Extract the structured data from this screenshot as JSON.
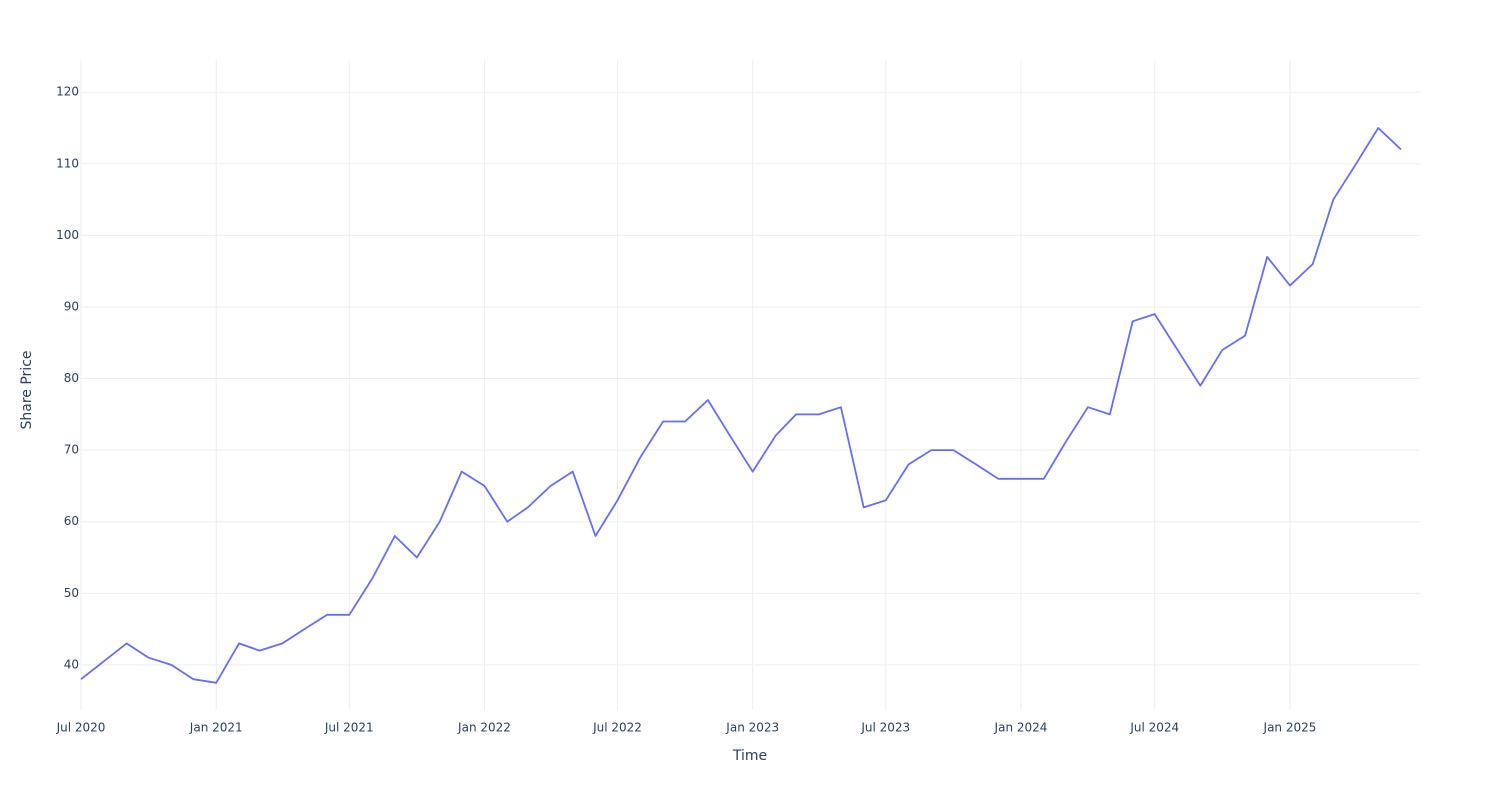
{
  "chart_data": {
    "type": "line",
    "x_label": "Time",
    "y_label": "Share Price",
    "x": [
      "2020-07",
      "2020-08",
      "2020-09",
      "2020-10",
      "2020-11",
      "2020-12",
      "2021-01",
      "2021-02",
      "2021-03",
      "2021-04",
      "2021-05",
      "2021-06",
      "2021-07",
      "2021-08",
      "2021-09",
      "2021-10",
      "2021-11",
      "2021-12",
      "2022-01",
      "2022-02",
      "2022-03",
      "2022-04",
      "2022-05",
      "2022-06",
      "2022-07",
      "2022-08",
      "2022-09",
      "2022-10",
      "2022-11",
      "2022-12",
      "2023-01",
      "2023-02",
      "2023-03",
      "2023-04",
      "2023-05",
      "2023-06",
      "2023-07",
      "2023-08",
      "2023-09",
      "2023-10",
      "2023-11",
      "2023-12",
      "2024-01",
      "2024-02",
      "2024-03",
      "2024-04",
      "2024-05",
      "2024-06",
      "2024-07",
      "2024-08",
      "2024-09",
      "2024-10",
      "2024-11",
      "2024-12",
      "2025-01",
      "2025-02",
      "2025-03",
      "2025-04",
      "2025-05",
      "2025-06"
    ],
    "series": [
      {
        "color": "#636efa",
        "values": [
          38,
          40.5,
          43,
          41,
          40,
          38,
          37.5,
          43,
          42,
          43,
          45,
          47,
          47,
          52,
          58,
          55,
          60,
          67,
          65,
          60,
          62,
          65,
          67,
          58,
          63,
          69,
          74,
          74,
          77,
          72,
          67,
          72,
          75,
          75,
          76,
          62,
          63,
          68,
          70,
          70,
          68,
          66,
          66,
          66,
          71,
          76,
          75,
          88,
          89,
          84,
          79,
          84,
          86,
          97,
          93,
          96,
          105,
          110,
          115,
          112
        ]
      }
    ],
    "xlim": [
      "2020-07",
      "2025-07"
    ],
    "xticks": [
      {
        "value": "2020-07",
        "label": "Jul 2020"
      },
      {
        "value": "2021-01",
        "label": "Jan 2021"
      },
      {
        "value": "2021-07",
        "label": "Jul 2021"
      },
      {
        "value": "2022-01",
        "label": "Jan 2022"
      },
      {
        "value": "2022-07",
        "label": "Jul 2022"
      },
      {
        "value": "2023-01",
        "label": "Jan 2023"
      },
      {
        "value": "2023-07",
        "label": "Jul 2023"
      },
      {
        "value": "2024-01",
        "label": "Jan 2024"
      },
      {
        "value": "2024-07",
        "label": "Jul 2024"
      },
      {
        "value": "2025-01",
        "label": "Jan 2025"
      }
    ],
    "ylim": [
      33.7,
      124.5
    ],
    "yticks": [
      40,
      50,
      60,
      70,
      80,
      90,
      100,
      110,
      120
    ],
    "grid": true
  }
}
